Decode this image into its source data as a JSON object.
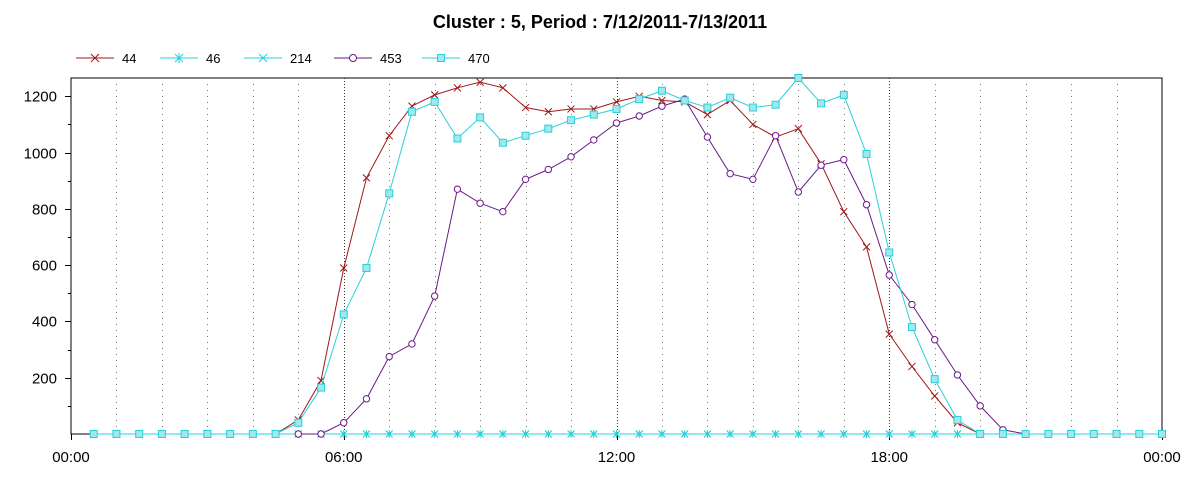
{
  "chart_data": {
    "type": "line",
    "title": "Cluster : 5, Period : 7/12/2011-7/13/2011",
    "xlabel": "",
    "ylabel": "",
    "x_ticks": [
      "00:00",
      "06:00",
      "12:00",
      "18:00",
      "00:00"
    ],
    "y_ticks": [
      200,
      400,
      600,
      800,
      1000,
      1200
    ],
    "xlim_hours": [
      0,
      24
    ],
    "ylim": [
      0,
      1265
    ],
    "grid": true,
    "legend_position": "top-left",
    "series": [
      {
        "name": "44",
        "color": "#a01818",
        "marker": "x",
        "points": [
          [
            0.5,
            0
          ],
          [
            1,
            0
          ],
          [
            1.5,
            0
          ],
          [
            2,
            0
          ],
          [
            2.5,
            0
          ],
          [
            3,
            0
          ],
          [
            3.5,
            0
          ],
          [
            4,
            0
          ],
          [
            4.5,
            0
          ],
          [
            5,
            50
          ],
          [
            5.5,
            190
          ],
          [
            6,
            590
          ],
          [
            6.5,
            910
          ],
          [
            7,
            1060
          ],
          [
            7.5,
            1165
          ],
          [
            8,
            1205
          ],
          [
            8.5,
            1230
          ],
          [
            9,
            1250
          ],
          [
            9.5,
            1230
          ],
          [
            10,
            1160
          ],
          [
            10.5,
            1145
          ],
          [
            11,
            1155
          ],
          [
            11.5,
            1155
          ],
          [
            12,
            1180
          ],
          [
            12.5,
            1200
          ],
          [
            13,
            1185
          ],
          [
            13.5,
            1180
          ],
          [
            14,
            1135
          ],
          [
            14.5,
            1185
          ],
          [
            15,
            1100
          ],
          [
            15.5,
            1055
          ],
          [
            16,
            1085
          ],
          [
            16.5,
            960
          ],
          [
            17,
            790
          ],
          [
            17.5,
            665
          ],
          [
            18,
            355
          ],
          [
            18.5,
            240
          ],
          [
            19,
            135
          ],
          [
            19.5,
            40
          ],
          [
            20,
            0
          ],
          [
            20.5,
            0
          ],
          [
            21,
            0
          ],
          [
            21.5,
            0
          ],
          [
            22,
            0
          ],
          [
            22.5,
            0
          ],
          [
            23,
            0
          ],
          [
            23.5,
            0
          ],
          [
            24,
            0
          ]
        ]
      },
      {
        "name": "46",
        "color": "#28d0d8",
        "marker": "asterisk",
        "points": [
          [
            0.5,
            0
          ],
          [
            1,
            0
          ],
          [
            1.5,
            0
          ],
          [
            2,
            0
          ],
          [
            2.5,
            0
          ],
          [
            3,
            0
          ],
          [
            3.5,
            0
          ],
          [
            4,
            0
          ],
          [
            4.5,
            0
          ],
          [
            5,
            0
          ],
          [
            5.5,
            0
          ],
          [
            6,
            0
          ],
          [
            6.5,
            0
          ],
          [
            7,
            0
          ],
          [
            7.5,
            0
          ],
          [
            8,
            0
          ],
          [
            8.5,
            0
          ],
          [
            9,
            0
          ],
          [
            9.5,
            0
          ],
          [
            10,
            0
          ],
          [
            10.5,
            0
          ],
          [
            11,
            0
          ],
          [
            11.5,
            0
          ],
          [
            12,
            0
          ],
          [
            12.5,
            0
          ],
          [
            13,
            0
          ],
          [
            13.5,
            0
          ],
          [
            14,
            0
          ],
          [
            14.5,
            0
          ],
          [
            15,
            0
          ],
          [
            15.5,
            0
          ],
          [
            16,
            0
          ],
          [
            16.5,
            0
          ],
          [
            17,
            0
          ],
          [
            17.5,
            0
          ],
          [
            18,
            0
          ],
          [
            18.5,
            0
          ],
          [
            19,
            0
          ],
          [
            19.5,
            0
          ],
          [
            20,
            0
          ],
          [
            20.5,
            0
          ],
          [
            21,
            0
          ],
          [
            21.5,
            0
          ],
          [
            22,
            0
          ],
          [
            22.5,
            0
          ],
          [
            23,
            0
          ],
          [
            23.5,
            0
          ],
          [
            24,
            0
          ]
        ]
      },
      {
        "name": "214",
        "color": "#28d0d8",
        "marker": "x",
        "points": [
          [
            0.5,
            0
          ],
          [
            1,
            0
          ],
          [
            1.5,
            0
          ],
          [
            2,
            0
          ],
          [
            2.5,
            0
          ],
          [
            3,
            0
          ],
          [
            3.5,
            0
          ],
          [
            4,
            0
          ],
          [
            4.5,
            0
          ],
          [
            5,
            0
          ],
          [
            5.5,
            0
          ],
          [
            6,
            0
          ],
          [
            6.5,
            0
          ],
          [
            7,
            0
          ],
          [
            7.5,
            0
          ],
          [
            8,
            0
          ],
          [
            8.5,
            0
          ],
          [
            9,
            0
          ],
          [
            9.5,
            0
          ],
          [
            10,
            0
          ],
          [
            10.5,
            0
          ],
          [
            11,
            0
          ],
          [
            11.5,
            0
          ],
          [
            12,
            0
          ],
          [
            12.5,
            0
          ],
          [
            13,
            0
          ],
          [
            13.5,
            0
          ],
          [
            14,
            0
          ],
          [
            14.5,
            0
          ],
          [
            15,
            0
          ],
          [
            15.5,
            0
          ],
          [
            16,
            0
          ],
          [
            16.5,
            0
          ],
          [
            17,
            0
          ],
          [
            17.5,
            0
          ],
          [
            18,
            0
          ],
          [
            18.5,
            0
          ],
          [
            19,
            0
          ],
          [
            19.5,
            0
          ],
          [
            20,
            0
          ],
          [
            20.5,
            0
          ],
          [
            21,
            0
          ],
          [
            21.5,
            0
          ],
          [
            22,
            0
          ],
          [
            22.5,
            0
          ],
          [
            23,
            0
          ],
          [
            23.5,
            0
          ],
          [
            24,
            0
          ]
        ]
      },
      {
        "name": "453",
        "color": "#6a1a8a",
        "marker": "circle",
        "points": [
          [
            5,
            0
          ],
          [
            5.5,
            0
          ],
          [
            6,
            40
          ],
          [
            6.5,
            125
          ],
          [
            7,
            275
          ],
          [
            7.5,
            320
          ],
          [
            8,
            490
          ],
          [
            8.5,
            870
          ],
          [
            9,
            820
          ],
          [
            9.5,
            790
          ],
          [
            10,
            905
          ],
          [
            10.5,
            940
          ],
          [
            11,
            985
          ],
          [
            11.5,
            1045
          ],
          [
            12,
            1105
          ],
          [
            12.5,
            1130
          ],
          [
            13,
            1165
          ],
          [
            13.5,
            1190
          ],
          [
            14,
            1055
          ],
          [
            14.5,
            925
          ],
          [
            15,
            905
          ],
          [
            15.5,
            1060
          ],
          [
            16,
            860
          ],
          [
            16.5,
            955
          ],
          [
            17,
            975
          ],
          [
            17.5,
            815
          ],
          [
            18,
            565
          ],
          [
            18.5,
            460
          ],
          [
            19,
            335
          ],
          [
            19.5,
            210
          ],
          [
            20,
            100
          ],
          [
            20.5,
            15
          ],
          [
            21,
            0
          ]
        ]
      },
      {
        "name": "470",
        "color": "#28d0d8",
        "marker": "square",
        "points": [
          [
            0.5,
            0
          ],
          [
            1,
            0
          ],
          [
            1.5,
            0
          ],
          [
            2,
            0
          ],
          [
            2.5,
            0
          ],
          [
            3,
            0
          ],
          [
            3.5,
            0
          ],
          [
            4,
            0
          ],
          [
            4.5,
            0
          ],
          [
            5,
            40
          ],
          [
            5.5,
            165
          ],
          [
            6,
            425
          ],
          [
            6.5,
            590
          ],
          [
            7,
            855
          ],
          [
            7.5,
            1145
          ],
          [
            8,
            1180
          ],
          [
            8.5,
            1050
          ],
          [
            9,
            1125
          ],
          [
            9.5,
            1035
          ],
          [
            10,
            1060
          ],
          [
            10.5,
            1085
          ],
          [
            11,
            1115
          ],
          [
            11.5,
            1135
          ],
          [
            12,
            1155
          ],
          [
            12.5,
            1190
          ],
          [
            13,
            1220
          ],
          [
            13.5,
            1185
          ],
          [
            14,
            1160
          ],
          [
            14.5,
            1195
          ],
          [
            15,
            1160
          ],
          [
            15.5,
            1170
          ],
          [
            16,
            1265
          ],
          [
            16.5,
            1175
          ],
          [
            17,
            1205
          ],
          [
            17.5,
            995
          ],
          [
            18,
            645
          ],
          [
            18.5,
            380
          ],
          [
            19,
            195
          ],
          [
            19.5,
            50
          ],
          [
            20,
            0
          ],
          [
            20.5,
            0
          ],
          [
            21,
            0
          ],
          [
            21.5,
            0
          ],
          [
            22,
            0
          ],
          [
            22.5,
            0
          ],
          [
            23,
            0
          ],
          [
            23.5,
            0
          ],
          [
            24,
            0
          ]
        ]
      }
    ]
  }
}
